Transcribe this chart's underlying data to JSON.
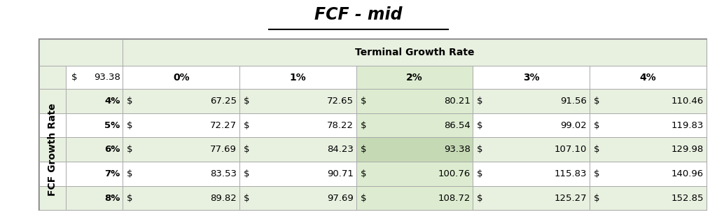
{
  "title": "FCF - mid",
  "terminal_growth_rates": [
    "0%",
    "1%",
    "2%",
    "3%",
    "4%"
  ],
  "fcf_growth_rates": [
    "4%",
    "5%",
    "6%",
    "7%",
    "8%"
  ],
  "corner_dollar": "$",
  "corner_value": "93.38",
  "values": [
    [
      67.25,
      72.65,
      80.21,
      91.56,
      110.46
    ],
    [
      72.27,
      78.22,
      86.54,
      99.02,
      119.83
    ],
    [
      77.69,
      84.23,
      93.38,
      107.1,
      129.98
    ],
    [
      83.53,
      90.71,
      100.76,
      115.83,
      140.96
    ],
    [
      89.82,
      97.69,
      108.72,
      125.27,
      152.85
    ]
  ],
  "highlight_row": 2,
  "highlight_col": 2,
  "bg_light": "#e8f0e0",
  "bg_white": "#ffffff",
  "bg_highlight_col": "#ddecd0",
  "bg_highlight_cell": "#c5d9b5",
  "border_color": "#aaaaaa",
  "outer_border_color": "#777777",
  "text_color": "#000000",
  "title_fontsize": 17,
  "cell_fontsize": 9.5,
  "header_fontsize": 10,
  "y_label": "FCF Growth Rate",
  "x_label": "Terminal Growth Rate",
  "underline_color": "#000000"
}
